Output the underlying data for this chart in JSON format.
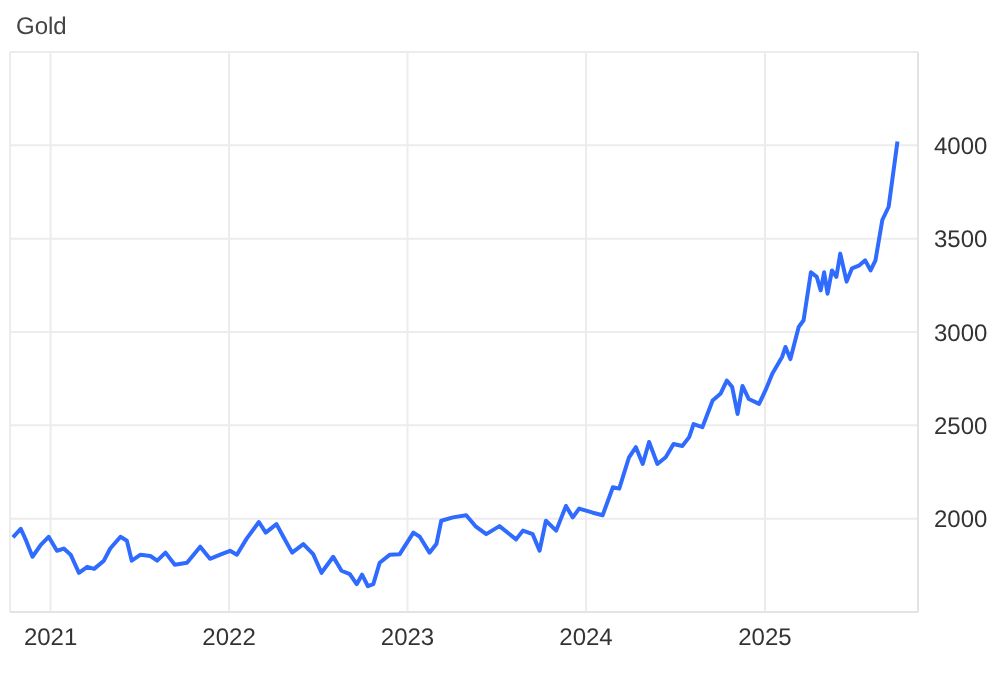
{
  "chart_data": {
    "type": "line",
    "title": "Gold",
    "x": [
      "2020-10-16",
      "2020-11-01",
      "2020-11-12",
      "2020-11-25",
      "2020-12-12",
      "2020-12-28",
      "2021-01-14",
      "2021-01-28",
      "2021-02-11",
      "2021-02-28",
      "2021-03-17",
      "2021-03-31",
      "2021-04-20",
      "2021-05-03",
      "2021-05-24",
      "2021-06-06",
      "2021-06-16",
      "2021-07-04",
      "2021-07-24",
      "2021-08-07",
      "2021-08-24",
      "2021-09-12",
      "2021-10-07",
      "2021-11-03",
      "2021-11-23",
      "2021-12-14",
      "2022-01-03",
      "2022-01-17",
      "2022-02-06",
      "2022-03-03",
      "2022-03-17",
      "2022-04-08",
      "2022-04-22",
      "2022-05-10",
      "2022-06-02",
      "2022-06-22",
      "2022-07-09",
      "2022-08-02",
      "2022-08-19",
      "2022-09-05",
      "2022-09-19",
      "2022-09-30",
      "2022-10-12",
      "2022-10-23",
      "2022-11-05",
      "2022-11-26",
      "2022-12-16",
      "2023-01-13",
      "2023-01-26",
      "2023-02-15",
      "2023-03-01",
      "2023-03-11",
      "2023-04-04",
      "2023-05-01",
      "2023-05-21",
      "2023-06-11",
      "2023-07-08",
      "2023-08-11",
      "2023-08-25",
      "2023-09-14",
      "2023-09-28",
      "2023-10-11",
      "2023-11-01",
      "2023-11-21",
      "2023-12-05",
      "2023-12-18",
      "2024-01-15",
      "2024-02-04",
      "2024-02-25",
      "2024-03-09",
      "2024-03-29",
      "2024-04-12",
      "2024-04-26",
      "2024-05-09",
      "2024-05-26",
      "2024-06-12",
      "2024-06-28",
      "2024-07-16",
      "2024-07-30",
      "2024-08-08",
      "2024-08-26",
      "2024-09-16",
      "2024-10-02",
      "2024-10-15",
      "2024-10-26",
      "2024-11-06",
      "2024-11-16",
      "2024-11-29",
      "2024-12-20",
      "2025-01-02",
      "2025-01-16",
      "2025-02-05",
      "2025-02-12",
      "2025-02-22",
      "2025-03-11",
      "2025-03-21",
      "2025-04-05",
      "2025-04-17",
      "2025-04-25",
      "2025-05-02",
      "2025-05-09",
      "2025-05-18",
      "2025-05-27",
      "2025-06-04",
      "2025-06-17",
      "2025-06-28",
      "2025-07-12",
      "2025-07-25",
      "2025-08-05",
      "2025-08-15",
      "2025-08-29",
      "2025-09-11",
      "2025-09-29"
    ],
    "series": [
      {
        "color": "#2f6bff",
        "values": [
          1900,
          1946,
          1882,
          1796,
          1860,
          1903,
          1828,
          1840,
          1807,
          1710,
          1742,
          1731,
          1775,
          1840,
          1903,
          1882,
          1775,
          1807,
          1800,
          1775,
          1818,
          1753,
          1764,
          1850,
          1785,
          1807,
          1828,
          1807,
          1893,
          1982,
          1925,
          1971,
          1903,
          1818,
          1864,
          1810,
          1710,
          1796,
          1721,
          1703,
          1649,
          1700,
          1638,
          1649,
          1764,
          1807,
          1810,
          1925,
          1903,
          1818,
          1864,
          1989,
          2007,
          2018,
          1957,
          1917,
          1960,
          1889,
          1936,
          1917,
          1828,
          1989,
          1936,
          2068,
          2007,
          2054,
          2032,
          2018,
          2168,
          2161,
          2329,
          2383,
          2293,
          2411,
          2293,
          2329,
          2400,
          2389,
          2437,
          2507,
          2490,
          2633,
          2669,
          2740,
          2705,
          2561,
          2711,
          2641,
          2615,
          2687,
          2776,
          2866,
          2920,
          2855,
          3027,
          3063,
          3320,
          3295,
          3223,
          3320,
          3205,
          3330,
          3295,
          3420,
          3270,
          3341,
          3355,
          3384,
          3330,
          3384,
          3600,
          3671,
          4020
        ]
      }
    ],
    "xlim": [
      "2020-10-10",
      "2025-11-10"
    ],
    "xticks": [
      "2021",
      "2022",
      "2023",
      "2024",
      "2025"
    ],
    "ylim": [
      1500,
      4500
    ],
    "yticks": [
      2000,
      2500,
      3000,
      3500,
      4000
    ],
    "grid": true,
    "legend": false,
    "marker": "none",
    "line_style": "solid"
  }
}
